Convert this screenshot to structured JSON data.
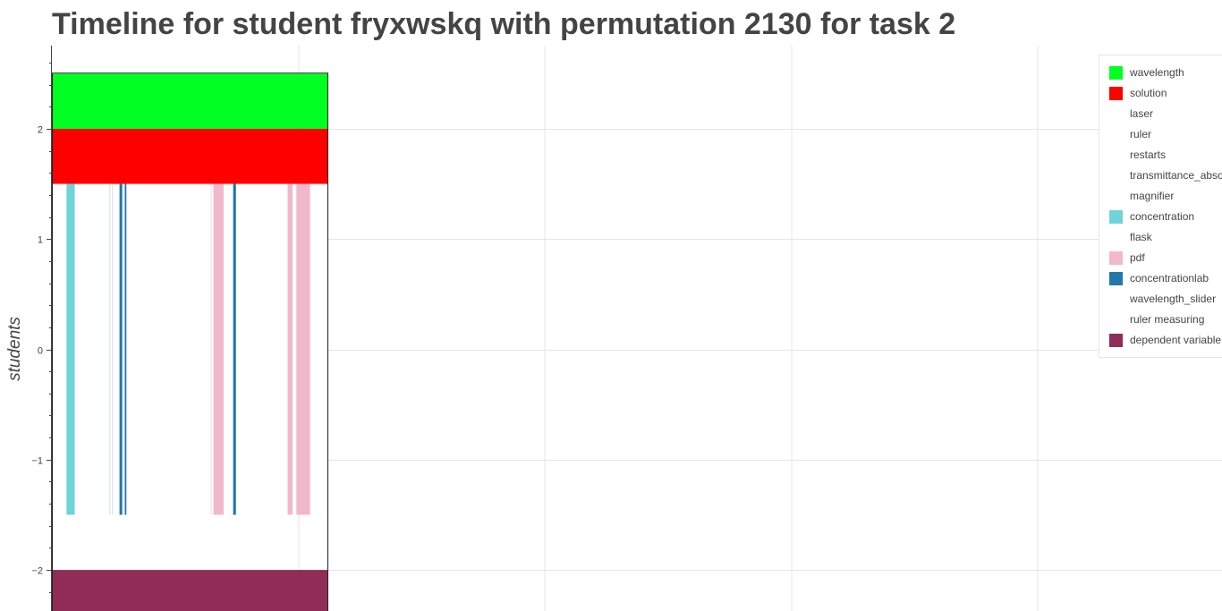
{
  "chart_data": {
    "type": "timeline",
    "title": "Timeline for student fryxwskq with permutation 2130 for task 2",
    "ylabel": "students",
    "xlabel": "",
    "ylim": [
      -2.36,
      2.78
    ],
    "y_ticks": [
      {
        "value": 2,
        "label": "2"
      },
      {
        "value": 1,
        "label": "1"
      },
      {
        "value": 0,
        "label": "0"
      },
      {
        "value": -1,
        "label": "−1"
      },
      {
        "value": -2,
        "label": "−2"
      }
    ],
    "grid": true,
    "legend_position": "top-right",
    "lanes": [
      {
        "name": "wavelength",
        "color": "#00ff22",
        "y0": 2.0,
        "y1": 2.5
      },
      {
        "name": "solution",
        "color": "#ff0000",
        "y0": 1.5,
        "y1": 2.0
      },
      {
        "name": "dependent variable",
        "color": "#8f2c57",
        "y0": -2.5,
        "y1": -2.0
      }
    ],
    "events_band": {
      "y0": -1.5,
      "y1": 1.5
    },
    "series": [
      {
        "name": "wavelength",
        "color": "#00ff22"
      },
      {
        "name": "solution",
        "color": "#ff0000"
      },
      {
        "name": "laser",
        "color": "#ffffff"
      },
      {
        "name": "ruler",
        "color": "#ffffff"
      },
      {
        "name": "restarts",
        "color": "#ffffff"
      },
      {
        "name": "transmittance_absorbance",
        "color": "#ffffff"
      },
      {
        "name": "magnifier",
        "color": "#ffffff"
      },
      {
        "name": "concentration",
        "color": "#6fd4d9"
      },
      {
        "name": "flask",
        "color": "#ffffff"
      },
      {
        "name": "pdf",
        "color": "#f1b8cb"
      },
      {
        "name": "concentrationlab",
        "color": "#2277ad"
      },
      {
        "name": "wavelength_slider",
        "color": "#ffffff"
      },
      {
        "name": "ruler measuring",
        "color": "#ffffff"
      },
      {
        "name": "dependent variable",
        "color": "#8f2c57"
      }
    ],
    "events": [
      {
        "series": "concentration",
        "color": "#6fd4d9",
        "x0": 0.05,
        "x1": 0.08
      },
      {
        "series": "concentrationlab",
        "color": "#dce9f3",
        "x0": 0.205,
        "x1": 0.21
      },
      {
        "series": "concentrationlab",
        "color": "#dce9f3",
        "x0": 0.215,
        "x1": 0.22
      },
      {
        "series": "concentrationlab",
        "color": "#2277ad",
        "x0": 0.243,
        "x1": 0.253
      },
      {
        "series": "concentrationlab",
        "color": "#2277ad",
        "x0": 0.262,
        "x1": 0.268
      },
      {
        "series": "pdf",
        "color": "#f9e3ea",
        "x0": 0.575,
        "x1": 0.58
      },
      {
        "series": "pdf",
        "color": "#f1b8cb",
        "x0": 0.585,
        "x1": 0.622
      },
      {
        "series": "concentrationlab",
        "color": "#dce9f3",
        "x0": 0.655,
        "x1": 0.66
      },
      {
        "series": "concentrationlab",
        "color": "#2277ad",
        "x0": 0.657,
        "x1": 0.667
      },
      {
        "series": "pdf",
        "color": "#f1b8cb",
        "x0": 0.855,
        "x1": 0.873
      },
      {
        "series": "pdf",
        "color": "#f1b8cb",
        "x0": 0.887,
        "x1": 0.937
      }
    ]
  },
  "legend": {
    "items": [
      {
        "label": "wavelength",
        "color": "#00ff22"
      },
      {
        "label": "solution",
        "color": "#ff0000"
      },
      {
        "label": "laser",
        "color": "#ffffff"
      },
      {
        "label": "ruler",
        "color": "#ffffff"
      },
      {
        "label": "restarts",
        "color": "#ffffff"
      },
      {
        "label": "transmittance_absorbance",
        "color": "#ffffff"
      },
      {
        "label": "magnifier",
        "color": "#ffffff"
      },
      {
        "label": "concentration",
        "color": "#6fd4d9"
      },
      {
        "label": "flask",
        "color": "#ffffff"
      },
      {
        "label": "pdf",
        "color": "#f1b8cb"
      },
      {
        "label": "concentrationlab",
        "color": "#2277ad"
      },
      {
        "label": "wavelength_slider",
        "color": "#ffffff"
      },
      {
        "label": "ruler measuring",
        "color": "#ffffff"
      },
      {
        "label": "dependent variable",
        "color": "#8f2c57"
      }
    ]
  }
}
